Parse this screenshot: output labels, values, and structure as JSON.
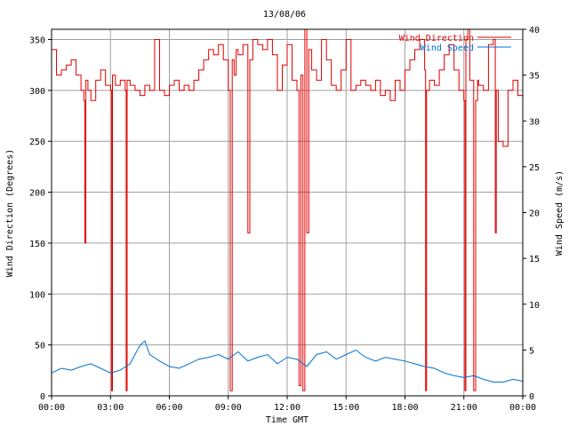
{
  "chart_data": {
    "type": "line",
    "title": "13/08/06",
    "xlabel": "Time GMT",
    "ylabel_left": "Wind Direction (Degrees)",
    "ylabel_right": "Wind Speed (m/s)",
    "x_ticks": [
      "00:00",
      "03:00",
      "06:00",
      "09:00",
      "12:00",
      "15:00",
      "18:00",
      "21:00",
      "00:00"
    ],
    "xlim_hours": [
      0,
      24
    ],
    "ylim_left": [
      0,
      360
    ],
    "ylim_right": [
      0,
      40
    ],
    "y_ticks_left": [
      0,
      50,
      100,
      150,
      200,
      250,
      300,
      350
    ],
    "y_ticks_right": [
      0,
      5,
      10,
      15,
      20,
      25,
      30,
      35,
      40
    ],
    "grid": true,
    "legend_position": "top-right",
    "colors": {
      "direction": "#e00000",
      "speed": "#0070d0"
    },
    "series": [
      {
        "name": "Wind Direction",
        "axis": "left",
        "x_hours": [
          0,
          0.25,
          0.5,
          0.75,
          1.0,
          1.25,
          1.5,
          1.65,
          1.7,
          1.75,
          1.85,
          2.0,
          2.25,
          2.5,
          2.75,
          3.0,
          3.05,
          3.1,
          3.25,
          3.5,
          3.75,
          3.8,
          3.85,
          4.0,
          4.25,
          4.5,
          4.75,
          5.0,
          5.25,
          5.5,
          5.75,
          6.0,
          6.25,
          6.5,
          6.75,
          7.0,
          7.25,
          7.5,
          7.75,
          8.0,
          8.25,
          8.5,
          8.75,
          9.0,
          9.1,
          9.2,
          9.3,
          9.4,
          9.5,
          9.75,
          10.0,
          10.1,
          10.25,
          10.5,
          10.75,
          11.0,
          11.25,
          11.5,
          11.75,
          12.0,
          12.25,
          12.5,
          12.6,
          12.7,
          12.8,
          12.9,
          13.0,
          13.1,
          13.25,
          13.5,
          13.75,
          14.0,
          14.25,
          14.5,
          14.75,
          15.0,
          15.25,
          15.5,
          15.75,
          16.0,
          16.25,
          16.5,
          16.75,
          17.0,
          17.25,
          17.5,
          17.75,
          18.0,
          18.25,
          18.5,
          18.75,
          19.0,
          19.05,
          19.1,
          19.25,
          19.5,
          19.75,
          20.0,
          20.25,
          20.5,
          20.75,
          21.0,
          21.05,
          21.1,
          21.2,
          21.3,
          21.5,
          21.6,
          21.7,
          21.75,
          22.0,
          22.25,
          22.5,
          22.6,
          22.65,
          22.75,
          23.0,
          23.25,
          23.5,
          23.75,
          24.0
        ],
        "values": [
          340,
          315,
          320,
          325,
          330,
          315,
          300,
          290,
          150,
          310,
          300,
          290,
          310,
          320,
          305,
          300,
          5,
          315,
          305,
          310,
          300,
          5,
          310,
          305,
          300,
          295,
          305,
          300,
          350,
          300,
          295,
          305,
          310,
          300,
          305,
          300,
          310,
          320,
          330,
          340,
          335,
          345,
          330,
          300,
          5,
          330,
          315,
          340,
          335,
          345,
          160,
          330,
          350,
          345,
          340,
          350,
          335,
          300,
          325,
          345,
          310,
          300,
          10,
          315,
          5,
          360,
          160,
          340,
          320,
          310,
          350,
          330,
          305,
          300,
          320,
          350,
          300,
          305,
          310,
          305,
          300,
          310,
          295,
          300,
          290,
          310,
          300,
          320,
          330,
          340,
          350,
          320,
          5,
          300,
          310,
          305,
          320,
          335,
          345,
          320,
          300,
          290,
          5,
          350,
          360,
          310,
          5,
          290,
          310,
          305,
          300,
          345,
          350,
          160,
          300,
          250,
          245,
          300,
          310,
          295,
          320
        ]
      },
      {
        "name": "Wind Speed",
        "axis": "right",
        "x_hours": [
          0,
          0.5,
          1.0,
          1.5,
          2.0,
          2.5,
          3.0,
          3.5,
          4.0,
          4.5,
          4.75,
          5.0,
          5.5,
          6.0,
          6.5,
          7.0,
          7.5,
          8.0,
          8.5,
          9.0,
          9.5,
          10.0,
          10.5,
          11.0,
          11.5,
          12.0,
          12.5,
          13.0,
          13.5,
          14.0,
          14.5,
          15.0,
          15.5,
          16.0,
          16.5,
          17.0,
          17.5,
          18.0,
          18.5,
          19.0,
          19.5,
          20.0,
          20.5,
          21.0,
          21.5,
          22.0,
          22.5,
          23.0,
          23.5,
          24.0
        ],
        "values": [
          2.5,
          3.0,
          2.8,
          3.2,
          3.5,
          3.0,
          2.5,
          2.8,
          3.5,
          5.5,
          6.0,
          4.5,
          3.8,
          3.2,
          3.0,
          3.5,
          4.0,
          4.2,
          4.5,
          4.0,
          4.8,
          3.8,
          4.2,
          4.5,
          3.5,
          4.2,
          4.0,
          3.2,
          4.5,
          4.8,
          4.0,
          4.5,
          5.0,
          4.2,
          3.8,
          4.2,
          4.0,
          3.8,
          3.5,
          3.2,
          3.0,
          2.5,
          2.2,
          2.0,
          2.2,
          1.8,
          1.5,
          1.5,
          1.8,
          1.6
        ]
      }
    ]
  }
}
